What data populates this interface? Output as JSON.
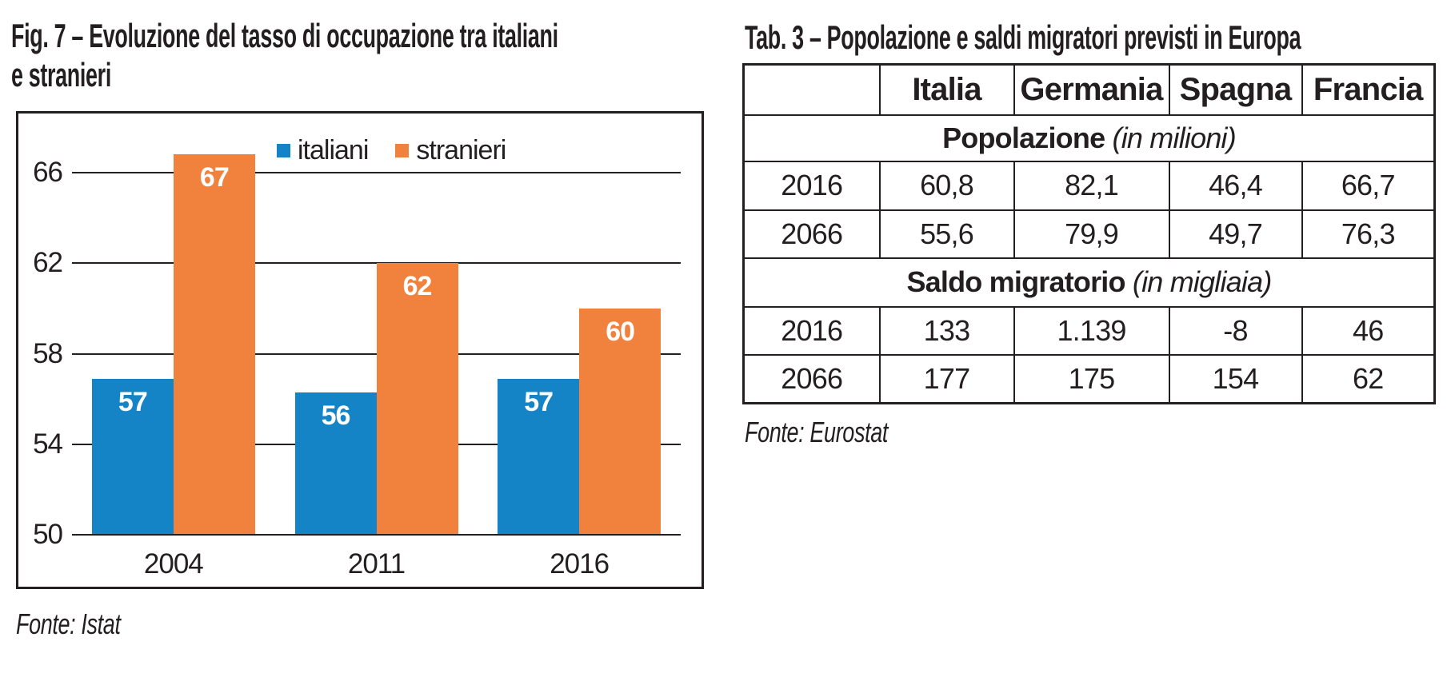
{
  "figure": {
    "title_lines": [
      "Fig. 7 – Evoluzione del tasso di occupazione tra italiani",
      "e stranieri"
    ],
    "source": "Fonte: Istat"
  },
  "chart_data": {
    "type": "bar",
    "title": "Fig. 7 – Evoluzione del tasso di occupazione tra italiani e stranieri",
    "xlabel": "",
    "ylabel": "",
    "categories": [
      "2004",
      "2011",
      "2016"
    ],
    "series": [
      {
        "name": "italiani",
        "color": "#1484C6",
        "values": [
          57,
          56,
          57
        ],
        "plot_values": [
          56.9,
          56.3,
          56.9
        ]
      },
      {
        "name": "stranieri",
        "color": "#F0823E",
        "values": [
          67,
          62,
          60
        ],
        "plot_values": [
          66.8,
          62.0,
          60.0
        ]
      }
    ],
    "yticks": [
      66,
      62,
      58,
      54,
      50
    ],
    "ylim": [
      50,
      68.7
    ],
    "grid": "horizontal",
    "legend_position": "top-center-inside",
    "bar_value_labels": true
  },
  "table": {
    "title": "Tab. 3 – Popolazione e saldi migratori previsti in Europa",
    "source": "Fonte: Eurostat",
    "columns": [
      "",
      "Italia",
      "Germania",
      "Spagna",
      "Francia"
    ],
    "sections": [
      {
        "label": "Popolazione",
        "unit": "(in milioni)",
        "rows": [
          {
            "year": "2016",
            "values": [
              "60,8",
              "82,1",
              "46,4",
              "66,7"
            ]
          },
          {
            "year": "2066",
            "values": [
              "55,6",
              "79,9",
              "49,7",
              "76,3"
            ]
          }
        ]
      },
      {
        "label": "Saldo migratorio",
        "unit": "(in migliaia)",
        "rows": [
          {
            "year": "2016",
            "values": [
              "133",
              "1.139",
              "-8",
              "46"
            ]
          },
          {
            "year": "2066",
            "values": [
              "177",
              "175",
              "154",
              "62"
            ]
          }
        ]
      }
    ]
  },
  "colors": {
    "italiani_blue": "#1484C6",
    "stranieri_orange": "#F0823E",
    "ink_black": "#231f20",
    "bar_label_white": "#ffffff"
  }
}
